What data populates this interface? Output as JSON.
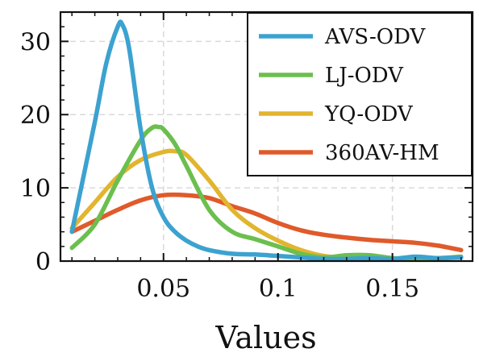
{
  "chart_data": {
    "type": "line",
    "title": "",
    "xlabel": "Values",
    "ylabel": "",
    "xlim": [
      0.005,
      0.185
    ],
    "ylim": [
      0,
      34
    ],
    "grid": true,
    "legend": "top-right",
    "xticks": [
      {
        "value": 0.05,
        "label": "0.05"
      },
      {
        "value": 0.1,
        "label": "0.1"
      },
      {
        "value": 0.15,
        "label": "0.15"
      }
    ],
    "yticks": [
      {
        "value": 0,
        "label": "0"
      },
      {
        "value": 10,
        "label": "10"
      },
      {
        "value": 20,
        "label": "20"
      },
      {
        "value": 30,
        "label": "30"
      }
    ],
    "series": [
      {
        "name": "AVS-ODV",
        "color": "#3ca2d0",
        "x": [
          0.01,
          0.02,
          0.025,
          0.03,
          0.032,
          0.035,
          0.04,
          0.045,
          0.05,
          0.055,
          0.06,
          0.065,
          0.07,
          0.08,
          0.09,
          0.1,
          0.11,
          0.12,
          0.13,
          0.14,
          0.15,
          0.16,
          0.17,
          0.18
        ],
        "y": [
          4,
          19,
          27,
          32,
          32.3,
          29,
          18,
          10,
          6,
          4,
          2.8,
          2,
          1.5,
          1,
          0.9,
          0.7,
          0.5,
          0.3,
          0.3,
          0.4,
          0.3,
          0.6,
          0.4,
          0.5
        ]
      },
      {
        "name": "LJ-ODV",
        "color": "#6bbf4e",
        "x": [
          0.01,
          0.02,
          0.03,
          0.04,
          0.045,
          0.048,
          0.05,
          0.055,
          0.06,
          0.07,
          0.08,
          0.09,
          0.1,
          0.11,
          0.12,
          0.13,
          0.14,
          0.15,
          0.16,
          0.17,
          0.18
        ],
        "y": [
          1.8,
          5,
          11,
          16.5,
          18.2,
          18.3,
          18,
          16,
          13,
          7,
          4,
          3,
          2,
          1,
          0.5,
          0.8,
          0.8,
          0.4,
          0.3,
          0.4,
          0.6
        ]
      },
      {
        "name": "YQ-ODV",
        "color": "#e2b52f",
        "x": [
          0.01,
          0.02,
          0.03,
          0.04,
          0.05,
          0.055,
          0.06,
          0.07,
          0.08,
          0.09,
          0.1,
          0.11,
          0.12,
          0.13,
          0.14,
          0.15,
          0.16,
          0.17,
          0.18
        ],
        "y": [
          4.5,
          8,
          11.5,
          13.8,
          14.9,
          15,
          14.5,
          11,
          7,
          4.5,
          2.8,
          1.5,
          0.7,
          0.4,
          0.3,
          0.3,
          0.3,
          0.4,
          0.5
        ]
      },
      {
        "name": "360AV-HM",
        "color": "#e05a2a",
        "x": [
          0.01,
          0.02,
          0.03,
          0.04,
          0.05,
          0.06,
          0.07,
          0.08,
          0.09,
          0.1,
          0.11,
          0.12,
          0.13,
          0.14,
          0.15,
          0.16,
          0.17,
          0.18
        ],
        "y": [
          4,
          5.5,
          7,
          8.3,
          9,
          9,
          8.6,
          7.5,
          6.5,
          5.2,
          4.2,
          3.6,
          3.2,
          2.9,
          2.7,
          2.5,
          2.1,
          1.5
        ]
      }
    ]
  }
}
